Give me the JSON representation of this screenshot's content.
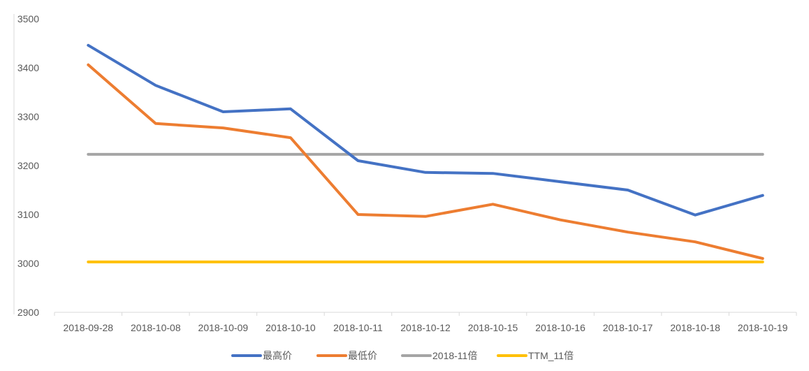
{
  "chart_data": {
    "type": "line",
    "title": "",
    "xlabel": "",
    "ylabel": "",
    "ylim": [
      2900,
      3500
    ],
    "yticks": [
      2900,
      3000,
      3100,
      3200,
      3300,
      3400,
      3500
    ],
    "grid": false,
    "legend_position": "bottom",
    "categories": [
      "2018-09-28",
      "2018-10-08",
      "2018-10-09",
      "2018-10-10",
      "2018-10-11",
      "2018-10-12",
      "2018-10-15",
      "2018-10-16",
      "2018-10-17",
      "2018-10-18",
      "2018-10-19"
    ],
    "series": [
      {
        "name": "最高价",
        "color": "#4472C4",
        "values": [
          3446,
          3364,
          3310,
          3316,
          3210,
          3186,
          3184,
          3167,
          3150,
          3099,
          3139
        ]
      },
      {
        "name": "最低价",
        "color": "#ED7D31",
        "values": [
          3406,
          3286,
          3277,
          3257,
          3100,
          3096,
          3121,
          3089,
          3064,
          3044,
          3010
        ]
      },
      {
        "name": "2018-11倍",
        "color": "#A5A5A5",
        "values": [
          3223,
          3223,
          3223,
          3223,
          3223,
          3223,
          3223,
          3223,
          3223,
          3223,
          3223
        ]
      },
      {
        "name": "TTM_11倍",
        "color": "#FFC000",
        "values": [
          3003,
          3003,
          3003,
          3003,
          3003,
          3003,
          3003,
          3003,
          3003,
          3003,
          3003
        ]
      }
    ]
  }
}
